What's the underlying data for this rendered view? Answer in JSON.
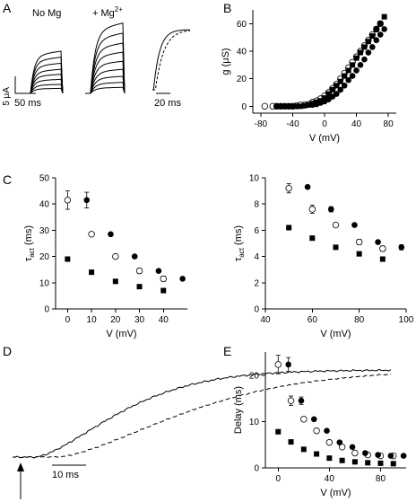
{
  "panels": {
    "A": {
      "letter": "A",
      "label_nomg": "No Mg",
      "label_mg_prefix": "+ Mg",
      "label_mg_sup": "2+",
      "scale_current": "5 μA",
      "scale_time_1": "50 ms",
      "scale_time_2": "20 ms"
    },
    "D": {
      "letter": "D",
      "scale_time": "10 ms"
    }
  },
  "chart_data": [
    {
      "panel": "B",
      "type": "scatter",
      "xlabel": "V (mV)",
      "ylabel": "g (μS)",
      "xlim": [
        -90,
        90
      ],
      "ylim": [
        -5,
        70
      ],
      "xticks": [
        -80,
        -40,
        0,
        40,
        80
      ],
      "yticks": [
        0,
        20,
        40,
        60
      ],
      "series": [
        {
          "marker": "filled-circle",
          "x": [
            -60,
            -55,
            -50,
            -45,
            -40,
            -35,
            -30,
            -25,
            -20,
            -15,
            -10,
            -5,
            0,
            5,
            10,
            15,
            20,
            25,
            30,
            35,
            40,
            45,
            50,
            55,
            60,
            65,
            70,
            75
          ],
          "y": [
            0,
            0,
            0,
            0,
            0,
            0,
            0.5,
            0.5,
            1,
            1,
            1.5,
            2.5,
            3.5,
            5,
            7,
            9,
            12,
            15,
            19,
            22,
            26,
            30,
            34,
            39,
            43,
            48,
            52,
            56
          ]
        },
        {
          "marker": "open-circle",
          "x": [
            -75,
            -65,
            -60,
            -55,
            -50,
            -45,
            -40,
            -35,
            -30,
            -25,
            -20,
            -15,
            -10,
            -5,
            0,
            5,
            10,
            15,
            20,
            25,
            30,
            35,
            40,
            45,
            50,
            55,
            60,
            65,
            70
          ],
          "y": [
            0,
            0,
            0,
            0,
            0,
            0,
            0,
            0.5,
            1,
            1,
            1.5,
            3,
            4,
            5.5,
            7.5,
            10,
            13,
            16,
            20,
            24,
            28,
            32,
            36,
            40,
            44,
            48,
            52,
            56,
            60
          ]
        },
        {
          "marker": "filled-square",
          "x": [
            -60,
            -55,
            -50,
            -45,
            -40,
            -35,
            -30,
            -25,
            -20,
            -15,
            -10,
            -5,
            0,
            5,
            10,
            15,
            20,
            25,
            30,
            35,
            40,
            45,
            50,
            55,
            60,
            65,
            70,
            75
          ],
          "y": [
            0,
            0,
            0,
            0,
            0,
            0,
            0,
            0.5,
            1,
            2,
            3,
            4,
            6,
            9,
            12,
            15,
            18,
            22,
            26,
            30,
            35,
            39,
            43,
            47,
            51,
            56,
            60,
            65
          ]
        }
      ]
    },
    {
      "panel": "C-left",
      "type": "scatter",
      "xlabel": "V (mV)",
      "ylabel": "τact (ms)",
      "xlim": [
        -5,
        50
      ],
      "ylim": [
        0,
        50
      ],
      "xticks": [
        0,
        10,
        20,
        30,
        40
      ],
      "yticks": [
        0,
        10,
        20,
        30,
        40,
        50
      ],
      "series": [
        {
          "marker": "open-circle",
          "x": [
            0,
            10,
            20,
            30,
            40
          ],
          "y": [
            41.5,
            28.5,
            20,
            14.5,
            11.5
          ],
          "err": [
            3.5,
            0,
            0,
            1,
            1
          ]
        },
        {
          "marker": "filled-circle",
          "x": [
            8,
            18,
            28,
            38,
            48
          ],
          "y": [
            41.5,
            28.5,
            20,
            14.5,
            11.5
          ],
          "err": [
            3,
            0,
            0,
            0,
            0
          ]
        },
        {
          "marker": "filled-square",
          "x": [
            0,
            10,
            20,
            30,
            40
          ],
          "y": [
            19,
            14,
            10.5,
            8.5,
            7
          ]
        }
      ]
    },
    {
      "panel": "C-right",
      "type": "scatter",
      "xlabel": "V (mV)",
      "ylabel": "τact (ms)",
      "xlim": [
        40,
        100
      ],
      "ylim": [
        0,
        10
      ],
      "xticks": [
        40,
        60,
        80,
        100
      ],
      "yticks": [
        0,
        2,
        4,
        6,
        8,
        10
      ],
      "series": [
        {
          "marker": "open-circle",
          "x": [
            50,
            60,
            70,
            80,
            90
          ],
          "y": [
            9.2,
            7.6,
            6.4,
            5.1,
            4.6
          ],
          "err": [
            0.35,
            0.3,
            0,
            0.2,
            0.2
          ]
        },
        {
          "marker": "filled-circle",
          "x": [
            58,
            68,
            78,
            88,
            98
          ],
          "y": [
            9.3,
            7.6,
            6.4,
            5.1,
            4.7
          ],
          "err": [
            0,
            0.2,
            0,
            0,
            0.2
          ]
        },
        {
          "marker": "filled-square",
          "x": [
            50,
            60,
            70,
            80,
            90
          ],
          "y": [
            6.2,
            5.4,
            4.7,
            4.2,
            3.8
          ]
        }
      ]
    },
    {
      "panel": "E",
      "type": "scatter",
      "xlabel": "V (mV)",
      "ylabel": "Delay (ms)",
      "xlim": [
        -10,
        100
      ],
      "ylim": [
        0,
        25
      ],
      "xticks": [
        0,
        40,
        80
      ],
      "yticks": [
        0,
        10,
        20
      ],
      "series": [
        {
          "marker": "open-circle",
          "x": [
            0,
            10,
            20,
            30,
            40,
            50,
            60,
            70,
            80,
            90
          ],
          "y": [
            22.3,
            14.5,
            10.5,
            8,
            5.5,
            4.5,
            3.2,
            2.8,
            2.6,
            2.6
          ],
          "err": [
            2,
            1,
            0.5,
            0,
            0,
            0,
            0,
            0,
            0,
            0
          ]
        },
        {
          "marker": "filled-circle",
          "x": [
            8,
            18,
            28,
            38,
            48,
            58,
            68,
            78,
            88,
            98
          ],
          "y": [
            22.3,
            14.5,
            10.5,
            8,
            5.5,
            4.5,
            3.2,
            2.8,
            2.6,
            2.6
          ],
          "err": [
            1.5,
            0.8,
            0,
            0,
            0,
            0,
            0,
            0,
            0,
            0
          ]
        },
        {
          "marker": "filled-square",
          "x": [
            0,
            10,
            20,
            30,
            40,
            50,
            60,
            70,
            80,
            90
          ],
          "y": [
            7.8,
            5.6,
            4,
            3,
            2.1,
            1.6,
            1.3,
            1.1,
            1.0,
            0.9
          ]
        }
      ]
    }
  ]
}
